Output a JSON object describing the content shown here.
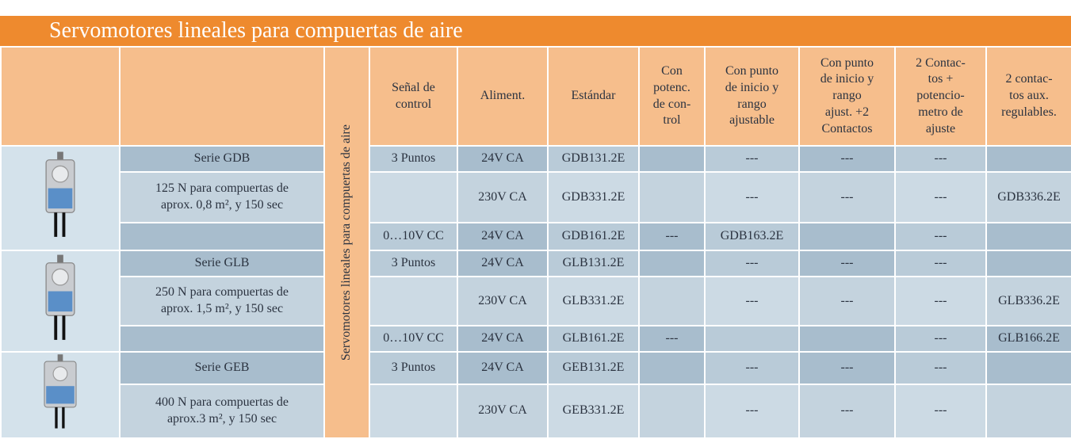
{
  "title": "Servomotores lineales para compuertas de aire",
  "table": {
    "side_label": "Servomotores lineales para compuertas de aire",
    "header": [
      "Señal de\ncontrol",
      "Aliment.",
      "Estándar",
      "Con\npotenc.\nde con-\ntrol",
      "Con punto\nde inicio y\nrango\najustable",
      "Con punto\nde inicio y\nrango\najust. +2\nContactos",
      "2 Contac-\ntos +\npotencio-\nmetro de\najuste",
      "2 contac-\ntos aux.\nregulables."
    ],
    "rows": [
      [
        "Serie GDB",
        "3 Puntos",
        "24V CA",
        "GDB131.2E",
        null,
        "---",
        "---",
        "---",
        null
      ],
      [
        "125 N para compuertas de\naprox. 0,8 m², y 150 sec",
        null,
        "230V CA",
        "GDB331.2E",
        null,
        "---",
        "---",
        "---",
        "GDB336.2E"
      ],
      [
        null,
        "0…10V CC",
        "24V CA",
        "GDB161.2E",
        "---",
        "GDB163.2E",
        null,
        "---",
        null
      ],
      [
        "Serie GLB",
        "3 Puntos",
        "24V CA",
        "GLB131.2E",
        null,
        "---",
        "---",
        "---",
        null
      ],
      [
        "250 N para compuertas de\naprox. 1,5 m², y 150 sec",
        null,
        "230V CA",
        "GLB331.2E",
        null,
        "---",
        "---",
        "---",
        "GLB336.2E"
      ],
      [
        null,
        "0…10V CC",
        "24V CA",
        "GLB161.2E",
        "---",
        null,
        null,
        "---",
        "GLB166.2E"
      ],
      [
        "Serie GEB",
        "3 Puntos",
        "24V CA",
        "GEB131.2E",
        null,
        "---",
        "---",
        "---",
        null
      ],
      [
        "400 N para compuertas de\naprox.3 m², y 150 sec",
        null,
        "230V CA",
        "GEB331.2E",
        null,
        "---",
        "---",
        "---",
        null
      ]
    ]
  }
}
